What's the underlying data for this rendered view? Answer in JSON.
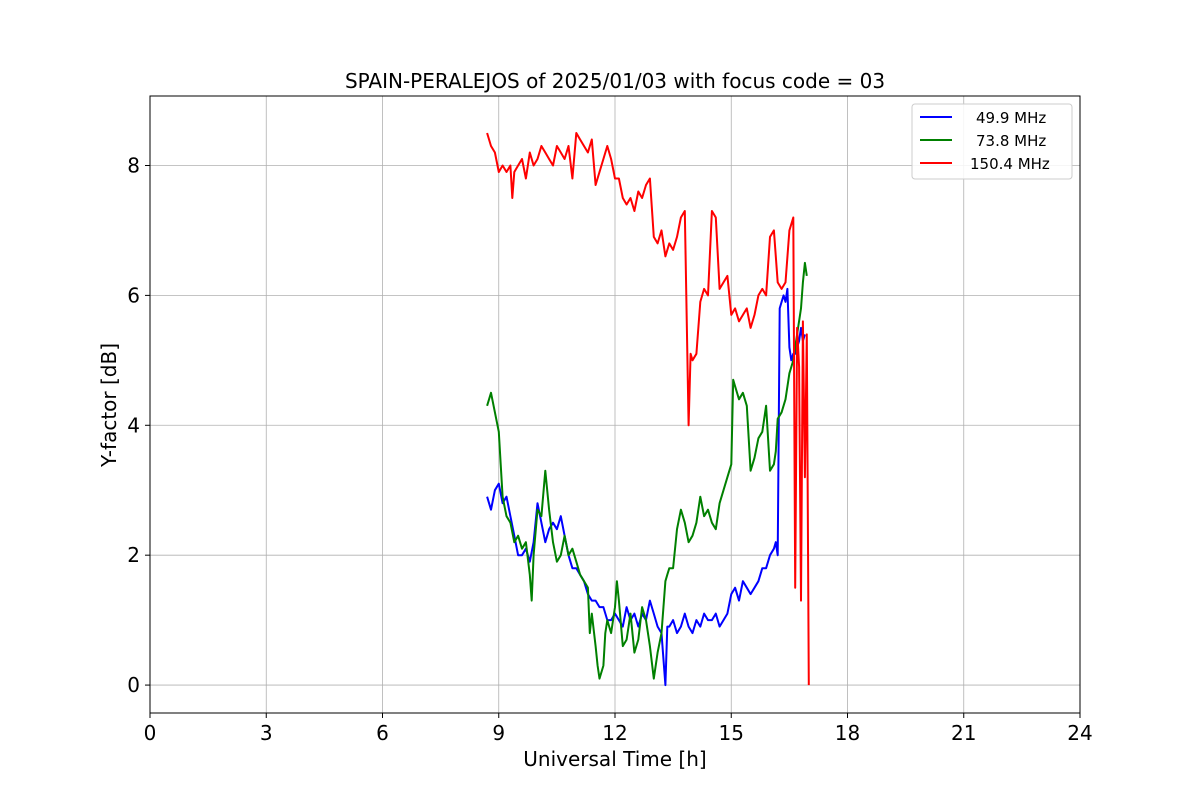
{
  "chart_data": {
    "type": "line",
    "title": "SPAIN-PERALEJOS of 2025/01/03 with focus code = 03",
    "xlabel": "Universal Time [h]",
    "ylabel": "Y-factor [dB]",
    "xlim": [
      0,
      24
    ],
    "ylim": [
      -0.43,
      9.07
    ],
    "x_ticks": [
      "0",
      "3",
      "6",
      "9",
      "12",
      "15",
      "18",
      "21",
      "24"
    ],
    "y_ticks": [
      "0",
      "2",
      "4",
      "6",
      "8"
    ],
    "grid": true,
    "legend_position": "top-right",
    "series": [
      {
        "name": "49.9 MHz",
        "color": "#0000ff",
        "points": [
          [
            8.7,
            2.9
          ],
          [
            8.8,
            2.7
          ],
          [
            8.9,
            3.0
          ],
          [
            9.0,
            3.1
          ],
          [
            9.1,
            2.8
          ],
          [
            9.2,
            2.9
          ],
          [
            9.3,
            2.6
          ],
          [
            9.4,
            2.3
          ],
          [
            9.5,
            2.0
          ],
          [
            9.6,
            2.0
          ],
          [
            9.7,
            2.1
          ],
          [
            9.8,
            1.9
          ],
          [
            9.9,
            2.2
          ],
          [
            10.0,
            2.8
          ],
          [
            10.1,
            2.5
          ],
          [
            10.2,
            2.2
          ],
          [
            10.3,
            2.4
          ],
          [
            10.4,
            2.5
          ],
          [
            10.5,
            2.4
          ],
          [
            10.6,
            2.6
          ],
          [
            10.7,
            2.3
          ],
          [
            10.8,
            2.0
          ],
          [
            10.9,
            1.8
          ],
          [
            11.0,
            1.8
          ],
          [
            11.1,
            1.7
          ],
          [
            11.2,
            1.6
          ],
          [
            11.3,
            1.4
          ],
          [
            11.4,
            1.3
          ],
          [
            11.5,
            1.3
          ],
          [
            11.6,
            1.2
          ],
          [
            11.7,
            1.2
          ],
          [
            11.8,
            1.0
          ],
          [
            11.9,
            1.0
          ],
          [
            12.0,
            1.1
          ],
          [
            12.1,
            1.0
          ],
          [
            12.2,
            0.9
          ],
          [
            12.3,
            1.2
          ],
          [
            12.4,
            1.0
          ],
          [
            12.5,
            1.1
          ],
          [
            12.6,
            0.9
          ],
          [
            12.7,
            1.1
          ],
          [
            12.8,
            1.0
          ],
          [
            12.9,
            1.3
          ],
          [
            13.0,
            1.1
          ],
          [
            13.1,
            0.9
          ],
          [
            13.2,
            0.8
          ],
          [
            13.3,
            0.0
          ],
          [
            13.35,
            0.9
          ],
          [
            13.4,
            0.9
          ],
          [
            13.5,
            1.0
          ],
          [
            13.6,
            0.8
          ],
          [
            13.7,
            0.9
          ],
          [
            13.8,
            1.1
          ],
          [
            13.9,
            0.9
          ],
          [
            14.0,
            0.8
          ],
          [
            14.1,
            1.0
          ],
          [
            14.2,
            0.9
          ],
          [
            14.3,
            1.1
          ],
          [
            14.4,
            1.0
          ],
          [
            14.5,
            1.0
          ],
          [
            14.6,
            1.1
          ],
          [
            14.7,
            0.9
          ],
          [
            14.8,
            1.0
          ],
          [
            14.9,
            1.1
          ],
          [
            15.0,
            1.4
          ],
          [
            15.1,
            1.5
          ],
          [
            15.2,
            1.3
          ],
          [
            15.3,
            1.6
          ],
          [
            15.4,
            1.5
          ],
          [
            15.5,
            1.4
          ],
          [
            15.6,
            1.5
          ],
          [
            15.7,
            1.6
          ],
          [
            15.8,
            1.8
          ],
          [
            15.9,
            1.8
          ],
          [
            16.0,
            2.0
          ],
          [
            16.1,
            2.1
          ],
          [
            16.15,
            2.2
          ],
          [
            16.2,
            2.0
          ],
          [
            16.25,
            5.8
          ],
          [
            16.3,
            5.9
          ],
          [
            16.35,
            6.0
          ],
          [
            16.4,
            5.9
          ],
          [
            16.45,
            6.1
          ],
          [
            16.5,
            5.2
          ],
          [
            16.55,
            5.0
          ],
          [
            16.6,
            5.1
          ],
          [
            16.65,
            5.1
          ],
          [
            16.7,
            5.2
          ],
          [
            16.75,
            5.3
          ],
          [
            16.8,
            5.5
          ],
          [
            16.85,
            5.3
          ],
          [
            16.9,
            5.4
          ]
        ]
      },
      {
        "name": "73.8 MHz",
        "color": "#008000",
        "points": [
          [
            8.7,
            4.3
          ],
          [
            8.8,
            4.5
          ],
          [
            8.9,
            4.2
          ],
          [
            9.0,
            3.9
          ],
          [
            9.05,
            3.4
          ],
          [
            9.1,
            2.9
          ],
          [
            9.2,
            2.6
          ],
          [
            9.3,
            2.5
          ],
          [
            9.4,
            2.2
          ],
          [
            9.5,
            2.3
          ],
          [
            9.6,
            2.1
          ],
          [
            9.7,
            2.2
          ],
          [
            9.8,
            1.7
          ],
          [
            9.85,
            1.3
          ],
          [
            9.9,
            2.0
          ],
          [
            10.0,
            2.7
          ],
          [
            10.1,
            2.6
          ],
          [
            10.2,
            3.3
          ],
          [
            10.3,
            2.7
          ],
          [
            10.4,
            2.2
          ],
          [
            10.5,
            1.9
          ],
          [
            10.6,
            2.0
          ],
          [
            10.7,
            2.3
          ],
          [
            10.8,
            2.0
          ],
          [
            10.9,
            2.1
          ],
          [
            11.0,
            1.9
          ],
          [
            11.1,
            1.7
          ],
          [
            11.2,
            1.6
          ],
          [
            11.3,
            1.5
          ],
          [
            11.35,
            0.8
          ],
          [
            11.4,
            1.1
          ],
          [
            11.5,
            0.6
          ],
          [
            11.55,
            0.3
          ],
          [
            11.6,
            0.1
          ],
          [
            11.7,
            0.3
          ],
          [
            11.75,
            0.8
          ],
          [
            11.8,
            1.0
          ],
          [
            11.9,
            0.8
          ],
          [
            12.0,
            1.2
          ],
          [
            12.05,
            1.6
          ],
          [
            12.1,
            1.3
          ],
          [
            12.2,
            0.6
          ],
          [
            12.3,
            0.7
          ],
          [
            12.4,
            1.1
          ],
          [
            12.5,
            0.5
          ],
          [
            12.6,
            0.7
          ],
          [
            12.7,
            1.2
          ],
          [
            12.8,
            1.0
          ],
          [
            12.9,
            0.6
          ],
          [
            13.0,
            0.1
          ],
          [
            13.05,
            0.3
          ],
          [
            13.1,
            0.5
          ],
          [
            13.2,
            0.8
          ],
          [
            13.3,
            1.6
          ],
          [
            13.35,
            1.7
          ],
          [
            13.4,
            1.8
          ],
          [
            13.5,
            1.8
          ],
          [
            13.6,
            2.4
          ],
          [
            13.7,
            2.7
          ],
          [
            13.8,
            2.5
          ],
          [
            13.9,
            2.2
          ],
          [
            14.0,
            2.3
          ],
          [
            14.1,
            2.5
          ],
          [
            14.2,
            2.9
          ],
          [
            14.3,
            2.6
          ],
          [
            14.4,
            2.7
          ],
          [
            14.5,
            2.5
          ],
          [
            14.6,
            2.4
          ],
          [
            14.7,
            2.8
          ],
          [
            14.8,
            3.0
          ],
          [
            14.9,
            3.2
          ],
          [
            15.0,
            3.4
          ],
          [
            15.05,
            4.7
          ],
          [
            15.1,
            4.6
          ],
          [
            15.2,
            4.4
          ],
          [
            15.3,
            4.5
          ],
          [
            15.4,
            4.3
          ],
          [
            15.45,
            3.8
          ],
          [
            15.5,
            3.3
          ],
          [
            15.6,
            3.5
          ],
          [
            15.7,
            3.8
          ],
          [
            15.8,
            3.9
          ],
          [
            15.9,
            4.3
          ],
          [
            16.0,
            3.3
          ],
          [
            16.1,
            3.4
          ],
          [
            16.15,
            3.6
          ],
          [
            16.2,
            4.1
          ],
          [
            16.3,
            4.2
          ],
          [
            16.4,
            4.4
          ],
          [
            16.5,
            4.8
          ],
          [
            16.6,
            5.0
          ],
          [
            16.7,
            5.4
          ],
          [
            16.8,
            5.8
          ],
          [
            16.85,
            6.2
          ],
          [
            16.9,
            6.5
          ],
          [
            16.95,
            6.3
          ]
        ]
      },
      {
        "name": "150.4 MHz",
        "color": "#ff0000",
        "points": [
          [
            8.7,
            8.5
          ],
          [
            8.8,
            8.3
          ],
          [
            8.9,
            8.2
          ],
          [
            9.0,
            7.9
          ],
          [
            9.1,
            8.0
          ],
          [
            9.2,
            7.9
          ],
          [
            9.3,
            8.0
          ],
          [
            9.35,
            7.5
          ],
          [
            9.4,
            7.9
          ],
          [
            9.5,
            8.0
          ],
          [
            9.6,
            8.1
          ],
          [
            9.7,
            7.8
          ],
          [
            9.8,
            8.2
          ],
          [
            9.9,
            8.0
          ],
          [
            10.0,
            8.1
          ],
          [
            10.1,
            8.3
          ],
          [
            10.2,
            8.2
          ],
          [
            10.3,
            8.1
          ],
          [
            10.4,
            8.0
          ],
          [
            10.5,
            8.3
          ],
          [
            10.6,
            8.2
          ],
          [
            10.7,
            8.1
          ],
          [
            10.8,
            8.3
          ],
          [
            10.9,
            7.8
          ],
          [
            11.0,
            8.5
          ],
          [
            11.1,
            8.4
          ],
          [
            11.2,
            8.3
          ],
          [
            11.3,
            8.2
          ],
          [
            11.4,
            8.4
          ],
          [
            11.5,
            7.7
          ],
          [
            11.6,
            7.9
          ],
          [
            11.7,
            8.1
          ],
          [
            11.8,
            8.3
          ],
          [
            11.9,
            8.1
          ],
          [
            12.0,
            7.8
          ],
          [
            12.1,
            7.8
          ],
          [
            12.2,
            7.5
          ],
          [
            12.3,
            7.4
          ],
          [
            12.4,
            7.5
          ],
          [
            12.5,
            7.3
          ],
          [
            12.6,
            7.6
          ],
          [
            12.7,
            7.5
          ],
          [
            12.8,
            7.7
          ],
          [
            12.9,
            7.8
          ],
          [
            13.0,
            6.9
          ],
          [
            13.1,
            6.8
          ],
          [
            13.2,
            7.0
          ],
          [
            13.3,
            6.6
          ],
          [
            13.4,
            6.8
          ],
          [
            13.5,
            6.7
          ],
          [
            13.6,
            6.9
          ],
          [
            13.7,
            7.2
          ],
          [
            13.8,
            7.3
          ],
          [
            13.9,
            4.0
          ],
          [
            13.95,
            5.1
          ],
          [
            14.0,
            5.0
          ],
          [
            14.1,
            5.1
          ],
          [
            14.2,
            5.9
          ],
          [
            14.3,
            6.1
          ],
          [
            14.4,
            6.0
          ],
          [
            14.5,
            7.3
          ],
          [
            14.6,
            7.2
          ],
          [
            14.7,
            6.1
          ],
          [
            14.8,
            6.2
          ],
          [
            14.9,
            6.3
          ],
          [
            15.0,
            5.7
          ],
          [
            15.1,
            5.8
          ],
          [
            15.2,
            5.6
          ],
          [
            15.3,
            5.7
          ],
          [
            15.4,
            5.8
          ],
          [
            15.5,
            5.5
          ],
          [
            15.6,
            5.7
          ],
          [
            15.7,
            6.0
          ],
          [
            15.8,
            6.1
          ],
          [
            15.9,
            6.0
          ],
          [
            16.0,
            6.9
          ],
          [
            16.1,
            7.0
          ],
          [
            16.2,
            6.2
          ],
          [
            16.3,
            6.1
          ],
          [
            16.4,
            6.2
          ],
          [
            16.5,
            7.0
          ],
          [
            16.6,
            7.2
          ],
          [
            16.65,
            1.5
          ],
          [
            16.7,
            5.5
          ],
          [
            16.75,
            4.9
          ],
          [
            16.8,
            1.3
          ],
          [
            16.85,
            5.6
          ],
          [
            16.9,
            3.2
          ],
          [
            16.95,
            5.4
          ],
          [
            17.0,
            0.0
          ]
        ]
      }
    ]
  }
}
